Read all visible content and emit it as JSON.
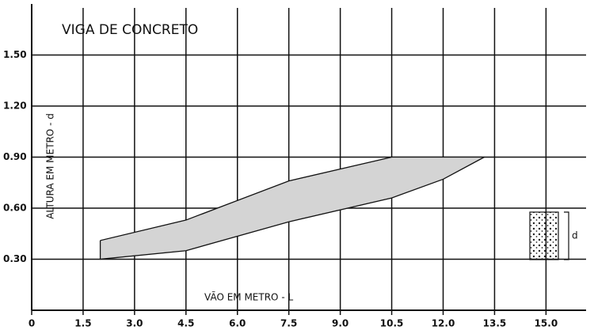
{
  "chart_data": {
    "type": "range_area",
    "title": "VIGA DE CONCRETO",
    "x_label": "VÃO EM METRO - L",
    "y_label": "ALTURA EM METRO - d",
    "annotation": "d",
    "x": [
      2.0,
      4.5,
      7.5,
      10.5,
      12.0,
      13.2
    ],
    "high": [
      0.41,
      0.53,
      0.76,
      0.9,
      0.9,
      0.9
    ],
    "low": [
      0.3,
      0.35,
      0.52,
      0.66,
      0.77,
      0.9
    ],
    "color": "#d4d4d4",
    "xlim": [
      0,
      16.4
    ],
    "ylim": [
      0,
      1.8
    ],
    "xticks": [
      0,
      1.5,
      {
        "value": 3,
        "label": "3.0"
      },
      4.5,
      {
        "value": 6,
        "label": "6.0"
      },
      7.5,
      {
        "value": 9,
        "label": "9.0"
      },
      10.5,
      {
        "value": 12,
        "label": "12.0"
      },
      13.5,
      {
        "value": 15,
        "label": "15.0"
      }
    ],
    "yticks": [
      {
        "value": 0.3,
        "label": "0.30"
      },
      {
        "value": 0.6,
        "label": "0.60"
      },
      {
        "value": 0.9,
        "label": "0.90"
      },
      {
        "value": 1.2,
        "label": "1.20"
      },
      {
        "value": 1.5,
        "label": "1.50"
      }
    ],
    "grid": true
  }
}
